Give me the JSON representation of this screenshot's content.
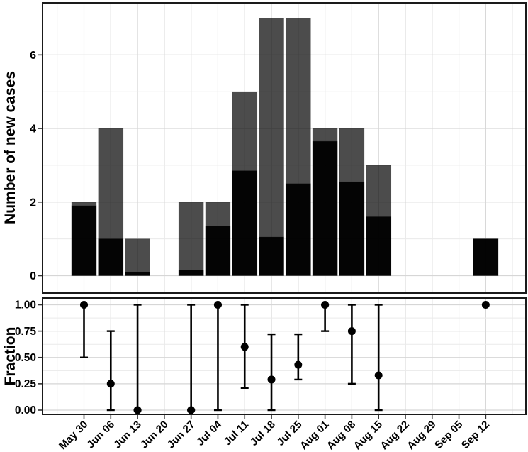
{
  "chart_data": [
    {
      "type": "bar",
      "panel": "top",
      "title": "",
      "xlabel": "",
      "ylabel": "Number of new cases",
      "categories": [
        "May 30",
        "Jun 06",
        "Jun 13",
        "Jun 20",
        "Jun 27",
        "Jul 04",
        "Jul 11",
        "Jul 18",
        "Jul 25",
        "Aug 01",
        "Aug 08",
        "Aug 15",
        "Aug 22",
        "Aug 29",
        "Sep 05",
        "Sep 12"
      ],
      "series": [
        {
          "name": "gray_bars_total_cases",
          "color": "#4d4d4d",
          "opacity": 0.7,
          "values": [
            2,
            4,
            1,
            0,
            2,
            2,
            5,
            7,
            7,
            4,
            4,
            3,
            0,
            0,
            0,
            1
          ]
        },
        {
          "name": "black_bars_subset",
          "color": "#0d0d0d",
          "opacity": 0.95,
          "values": [
            1.9,
            1.0,
            0.1,
            0,
            0.15,
            1.35,
            2.85,
            1.05,
            2.5,
            3.65,
            2.55,
            1.6,
            0,
            0,
            0,
            1
          ]
        }
      ],
      "bar_mode": "overlay",
      "ylim": [
        0,
        7.4
      ],
      "yticks": [
        0,
        2,
        4,
        6
      ],
      "ytick_labels": [
        "0",
        "2",
        "4",
        "6"
      ],
      "minor_yticks": [
        1,
        3,
        5,
        7
      ],
      "grid": "major+minor",
      "legend": "none"
    },
    {
      "type": "scatter",
      "panel": "bottom",
      "title": "",
      "xlabel": "",
      "ylabel": "Fraction",
      "categories": [
        "May 30",
        "Jun 06",
        "Jun 13",
        "Jun 20",
        "Jun 27",
        "Jul 04",
        "Jul 11",
        "Jul 18",
        "Jul 25",
        "Aug 01",
        "Aug 08",
        "Aug 15",
        "Aug 22",
        "Aug 29",
        "Sep 05",
        "Sep 12"
      ],
      "points": [
        1.0,
        0.25,
        0.0,
        null,
        0.0,
        1.0,
        0.6,
        0.29,
        0.43,
        1.0,
        0.75,
        0.33,
        null,
        null,
        null,
        1.0
      ],
      "ci_low": [
        0.5,
        0.0,
        0.0,
        null,
        0.0,
        0.0,
        0.21,
        0.0,
        0.29,
        0.75,
        0.25,
        0.0,
        null,
        null,
        null,
        1.0
      ],
      "ci_high": [
        1.0,
        0.75,
        1.0,
        null,
        1.0,
        1.0,
        1.0,
        0.72,
        0.72,
        1.0,
        1.0,
        1.0,
        null,
        null,
        null,
        1.0
      ],
      "marker": "filled-circle",
      "marker_color": "#000000",
      "errorbar_color": "#000000",
      "ylim": [
        0,
        1
      ],
      "yticks": [
        0,
        0.25,
        0.5,
        0.75,
        1
      ],
      "ytick_labels": [
        "0.00",
        "0.25",
        "0.50",
        "0.75",
        "1.00"
      ],
      "minor_yticks": [
        0.125,
        0.375,
        0.625,
        0.875
      ],
      "grid": "major+minor",
      "legend": "none"
    }
  ],
  "style": {
    "panel_border_color": "#1a1a1a",
    "major_grid_color": "#d6d6d6",
    "minor_grid_color": "#eaeaea",
    "tick_color": "#333333",
    "background": "#ffffff"
  }
}
